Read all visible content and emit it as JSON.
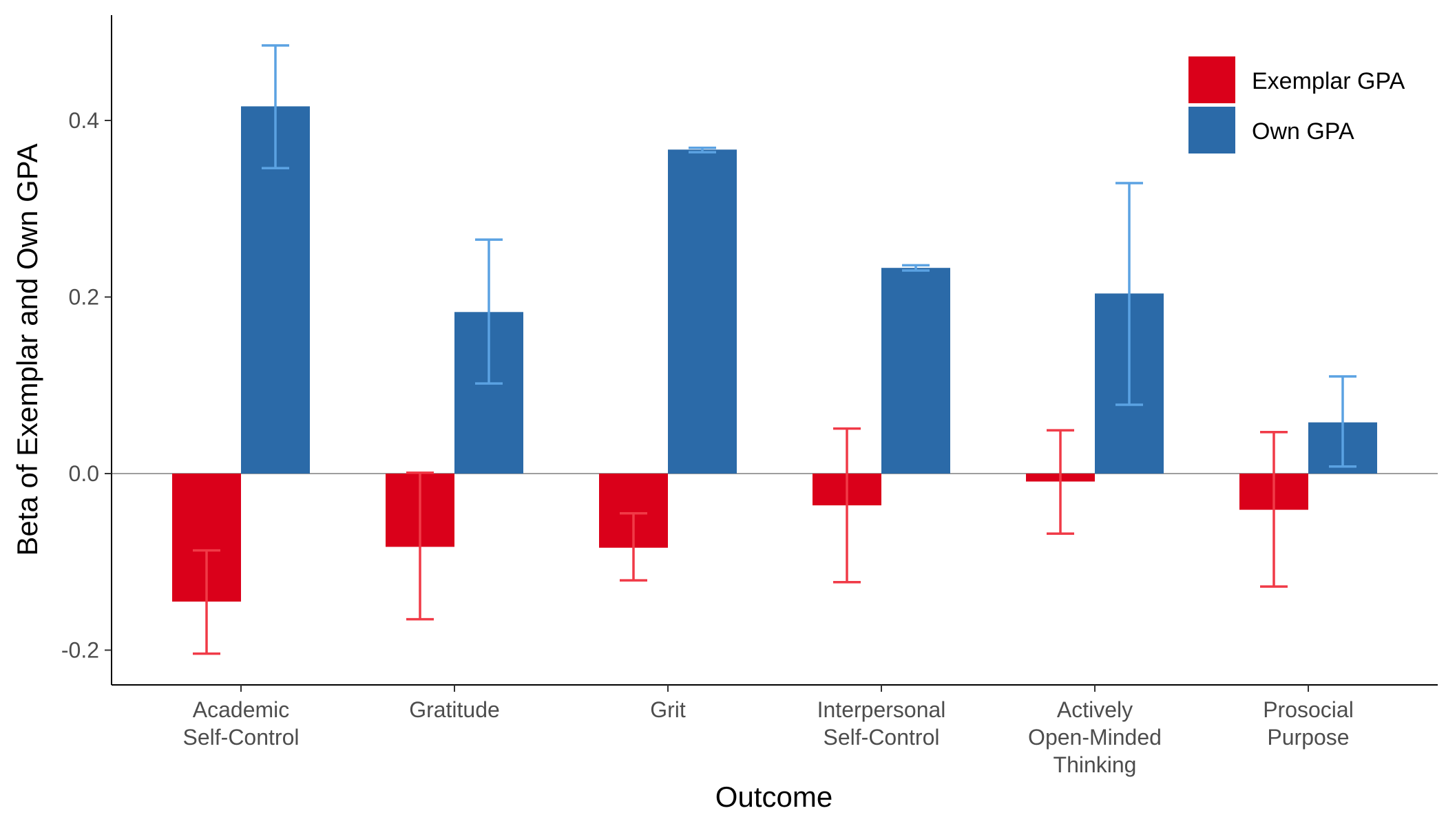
{
  "chart_data": {
    "type": "bar",
    "xlabel": "Outcome",
    "ylabel": "Beta of Exemplar and Own GPA",
    "ylim": [
      -0.24,
      0.52
    ],
    "yticks": [
      -0.2,
      0.0,
      0.2,
      0.4
    ],
    "ytick_labels": [
      "-0.2",
      "0.0",
      "0.2",
      "0.4"
    ],
    "categories": [
      [
        "Academic",
        "Self-Control"
      ],
      [
        "Gratitude"
      ],
      [
        "Grit"
      ],
      [
        "Interpersonal",
        "Self-Control"
      ],
      [
        "Actively",
        "Open-Minded",
        "Thinking"
      ],
      [
        "Prosocial",
        "Purpose"
      ]
    ],
    "legend_position": "top-right",
    "grid": false,
    "zero_line": true,
    "series": [
      {
        "name": "Exemplar GPA",
        "color": "#DA001A",
        "error_color": "#F03A47",
        "values": [
          -0.145,
          -0.083,
          -0.084,
          -0.036,
          -0.009,
          -0.041
        ],
        "err_low": [
          -0.204,
          -0.165,
          -0.121,
          -0.123,
          -0.068,
          -0.128
        ],
        "err_high": [
          -0.087,
          0.001,
          -0.045,
          0.051,
          0.049,
          0.047
        ]
      },
      {
        "name": "Own GPA",
        "color": "#2B6AA8",
        "error_color": "#5BA2E2",
        "values": [
          0.416,
          0.183,
          0.367,
          0.233,
          0.204,
          0.058
        ],
        "err_low": [
          0.346,
          0.102,
          0.364,
          0.23,
          0.078,
          0.008
        ],
        "err_high": [
          0.485,
          0.265,
          0.369,
          0.236,
          0.329,
          0.11
        ]
      }
    ]
  }
}
